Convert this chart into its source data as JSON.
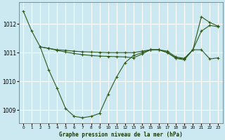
{
  "title": "Graphe pression niveau de la mer (hPa)",
  "bg_color": "#cce8f0",
  "grid_color": "#ffffff",
  "line_color": "#2d5a1b",
  "xlim": [
    -0.5,
    23.5
  ],
  "ylim": [
    1008.55,
    1012.75
  ],
  "yticks": [
    1009,
    1010,
    1011,
    1012
  ],
  "xticks": [
    0,
    1,
    2,
    3,
    4,
    5,
    6,
    7,
    8,
    9,
    10,
    11,
    12,
    13,
    14,
    15,
    16,
    17,
    18,
    19,
    20,
    21,
    22,
    23
  ],
  "series1_x": [
    0,
    1,
    2,
    3,
    4,
    5,
    6,
    7,
    8,
    9,
    10,
    11,
    12,
    13,
    14,
    15,
    16,
    17,
    18,
    19,
    20,
    21,
    22,
    23
  ],
  "series1_y": [
    1012.45,
    1011.75,
    1011.2,
    1010.4,
    1009.75,
    1009.05,
    1008.78,
    1008.73,
    1008.78,
    1008.88,
    1009.55,
    1010.15,
    1010.65,
    1010.9,
    1011.0,
    1011.1,
    1011.1,
    1011.0,
    1010.8,
    1010.75,
    1011.1,
    1011.75,
    1011.95,
    1011.9
  ],
  "series2_x": [
    2,
    3,
    4,
    5,
    6,
    7,
    8,
    9,
    10,
    11,
    12,
    13,
    14,
    15,
    16,
    17,
    18,
    19,
    20,
    21,
    22,
    23
  ],
  "series2_y": [
    1011.2,
    1011.15,
    1011.1,
    1011.08,
    1011.05,
    1011.03,
    1011.02,
    1011.01,
    1011.0,
    1011.0,
    1011.0,
    1011.0,
    1011.05,
    1011.1,
    1011.1,
    1011.05,
    1010.85,
    1010.8,
    1011.1,
    1012.25,
    1012.05,
    1011.92
  ],
  "series3_x": [
    2,
    3,
    4,
    5,
    6,
    7,
    8,
    9,
    10,
    11,
    12,
    13,
    14,
    15,
    16,
    17,
    18,
    19,
    20,
    21,
    22,
    23
  ],
  "series3_y": [
    1011.2,
    1011.15,
    1011.08,
    1011.02,
    1010.97,
    1010.93,
    1010.9,
    1010.88,
    1010.87,
    1010.86,
    1010.85,
    1010.82,
    1010.95,
    1011.1,
    1011.1,
    1011.0,
    1010.82,
    1010.78,
    1011.1,
    1011.1,
    1010.78,
    1010.82
  ]
}
